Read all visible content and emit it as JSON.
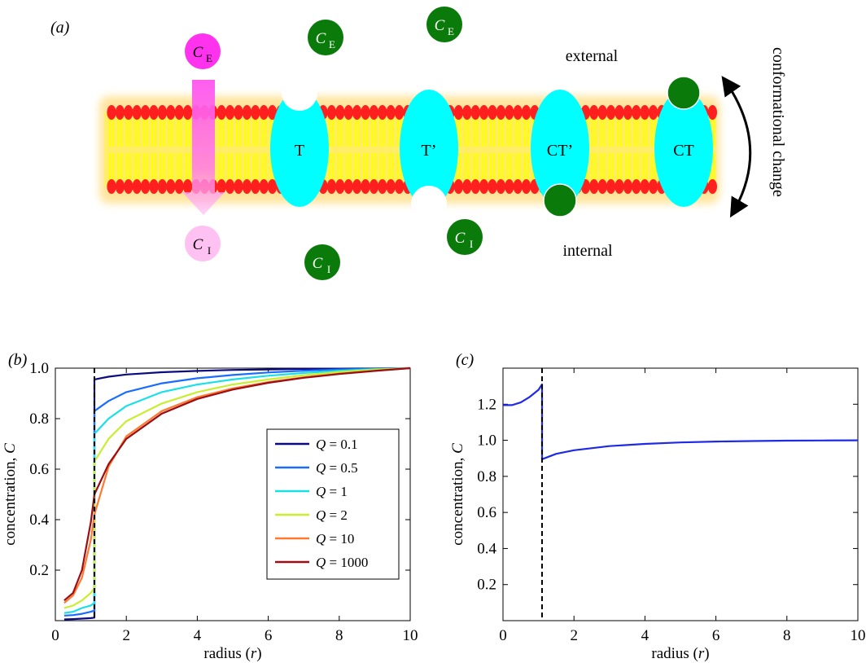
{
  "panel_a": {
    "label": "(a)",
    "external_label": "external",
    "internal_label": "internal",
    "conformational_label": "conformational change",
    "transporters": [
      "T",
      "T’",
      "CT’",
      "CT"
    ],
    "molecule_main": "C",
    "subscript_external": "E",
    "subscript_internal": "I",
    "colors": {
      "lipid_head": "#ff1f1f",
      "lipid_tail": "#ffff00",
      "membrane_glow": "#ffd966",
      "transporter": "#00ffff",
      "molecule_green": "#0a7a0a",
      "molecule_magenta": "#ff33ee",
      "molecule_pink": "#ffc0f2"
    }
  },
  "chart_data": [
    {
      "panel": "(b)",
      "type": "line",
      "xlabel_text": "radius (",
      "xlabel_var": "r",
      "xlabel_close": ")",
      "ylabel_text": "concentration, ",
      "ylabel_var": "C",
      "xlim": [
        0,
        10
      ],
      "ylim": [
        0,
        1.0
      ],
      "xticks": [
        0,
        2,
        4,
        6,
        8,
        10
      ],
      "yticks": [
        0.2,
        0.4,
        0.6,
        0.8,
        1.0
      ],
      "ytick_labels": [
        "0.2",
        "0.4",
        "0.6",
        "0.8",
        "1.0"
      ],
      "interface_r": 1.1,
      "legend_position": "right",
      "series": [
        {
          "name": "Q = 0.1",
          "q_label": "0.1",
          "color": "#0b0b80",
          "x": [
            0.25,
            0.5,
            0.75,
            1.0,
            1.1,
            1.1,
            1.5,
            2,
            3,
            4,
            5,
            6,
            7,
            8,
            9,
            10
          ],
          "y": [
            0.005,
            0.006,
            0.008,
            0.01,
            0.012,
            0.955,
            0.966,
            0.975,
            0.984,
            0.989,
            0.993,
            0.995,
            0.997,
            0.998,
            0.999,
            1.0
          ]
        },
        {
          "name": "Q = 0.5",
          "q_label": "0.5",
          "color": "#1a6cff",
          "x": [
            0.25,
            0.5,
            0.75,
            1.0,
            1.1,
            1.1,
            1.5,
            2,
            3,
            4,
            5,
            6,
            7,
            8,
            9,
            10
          ],
          "y": [
            0.02,
            0.022,
            0.027,
            0.035,
            0.04,
            0.83,
            0.87,
            0.905,
            0.94,
            0.96,
            0.973,
            0.983,
            0.99,
            0.995,
            0.998,
            1.0
          ]
        },
        {
          "name": "Q = 1",
          "q_label": "1",
          "color": "#19e0e6",
          "x": [
            0.25,
            0.5,
            0.75,
            1.0,
            1.1,
            1.1,
            1.5,
            2,
            3,
            4,
            5,
            6,
            7,
            8,
            9,
            10
          ],
          "y": [
            0.03,
            0.035,
            0.05,
            0.06,
            0.07,
            0.74,
            0.8,
            0.85,
            0.905,
            0.935,
            0.955,
            0.97,
            0.981,
            0.99,
            0.996,
            1.0
          ]
        },
        {
          "name": "Q = 2",
          "q_label": "2",
          "color": "#c8ee30",
          "x": [
            0.25,
            0.5,
            0.75,
            1.0,
            1.1,
            1.1,
            1.5,
            2,
            3,
            4,
            5,
            6,
            7,
            8,
            9,
            10
          ],
          "y": [
            0.05,
            0.06,
            0.08,
            0.11,
            0.13,
            0.63,
            0.72,
            0.79,
            0.86,
            0.905,
            0.935,
            0.955,
            0.972,
            0.985,
            0.994,
            1.0
          ]
        },
        {
          "name": "Q = 10",
          "q_label": "10",
          "color": "#ff7a30",
          "x": [
            0.25,
            0.5,
            0.75,
            1.0,
            1.1,
            1.5,
            2,
            3,
            4,
            5,
            6,
            7,
            8,
            9,
            10
          ],
          "y": [
            0.07,
            0.1,
            0.17,
            0.32,
            0.42,
            0.61,
            0.73,
            0.83,
            0.885,
            0.92,
            0.945,
            0.964,
            0.978,
            0.99,
            1.0
          ]
        },
        {
          "name": "Q = 1000",
          "q_label": "1000",
          "color": "#9b0f14",
          "x": [
            0.25,
            0.5,
            0.75,
            1.0,
            1.1,
            1.5,
            2,
            3,
            4,
            5,
            6,
            7,
            8,
            9,
            10
          ],
          "y": [
            0.08,
            0.11,
            0.2,
            0.39,
            0.5,
            0.62,
            0.72,
            0.82,
            0.878,
            0.915,
            0.942,
            0.962,
            0.977,
            0.989,
            1.0
          ]
        }
      ]
    },
    {
      "panel": "(c)",
      "type": "line",
      "xlabel_text": "radius (",
      "xlabel_var": "r",
      "xlabel_close": ")",
      "ylabel_text": "concentration, ",
      "ylabel_var": "C",
      "xlim": [
        0,
        10
      ],
      "ylim": [
        0,
        1.4
      ],
      "xticks": [
        0,
        2,
        4,
        6,
        8,
        10
      ],
      "yticks": [
        0.2,
        0.4,
        0.6,
        0.8,
        1.0,
        1.2
      ],
      "ytick_labels": [
        "0.2",
        "0.4",
        "0.6",
        "0.8",
        "1.0",
        "1.2"
      ],
      "interface_r": 1.1,
      "series": [
        {
          "color": "#1f2ae6",
          "x": [
            0.0,
            0.25,
            0.5,
            0.75,
            1.0,
            1.1,
            1.1,
            1.5,
            2,
            3,
            4,
            5,
            6,
            7,
            8,
            9,
            10
          ],
          "y": [
            1.195,
            1.195,
            1.21,
            1.24,
            1.28,
            1.31,
            0.895,
            0.925,
            0.945,
            0.968,
            0.98,
            0.988,
            0.993,
            0.996,
            0.998,
            0.999,
            1.0
          ]
        }
      ]
    }
  ]
}
